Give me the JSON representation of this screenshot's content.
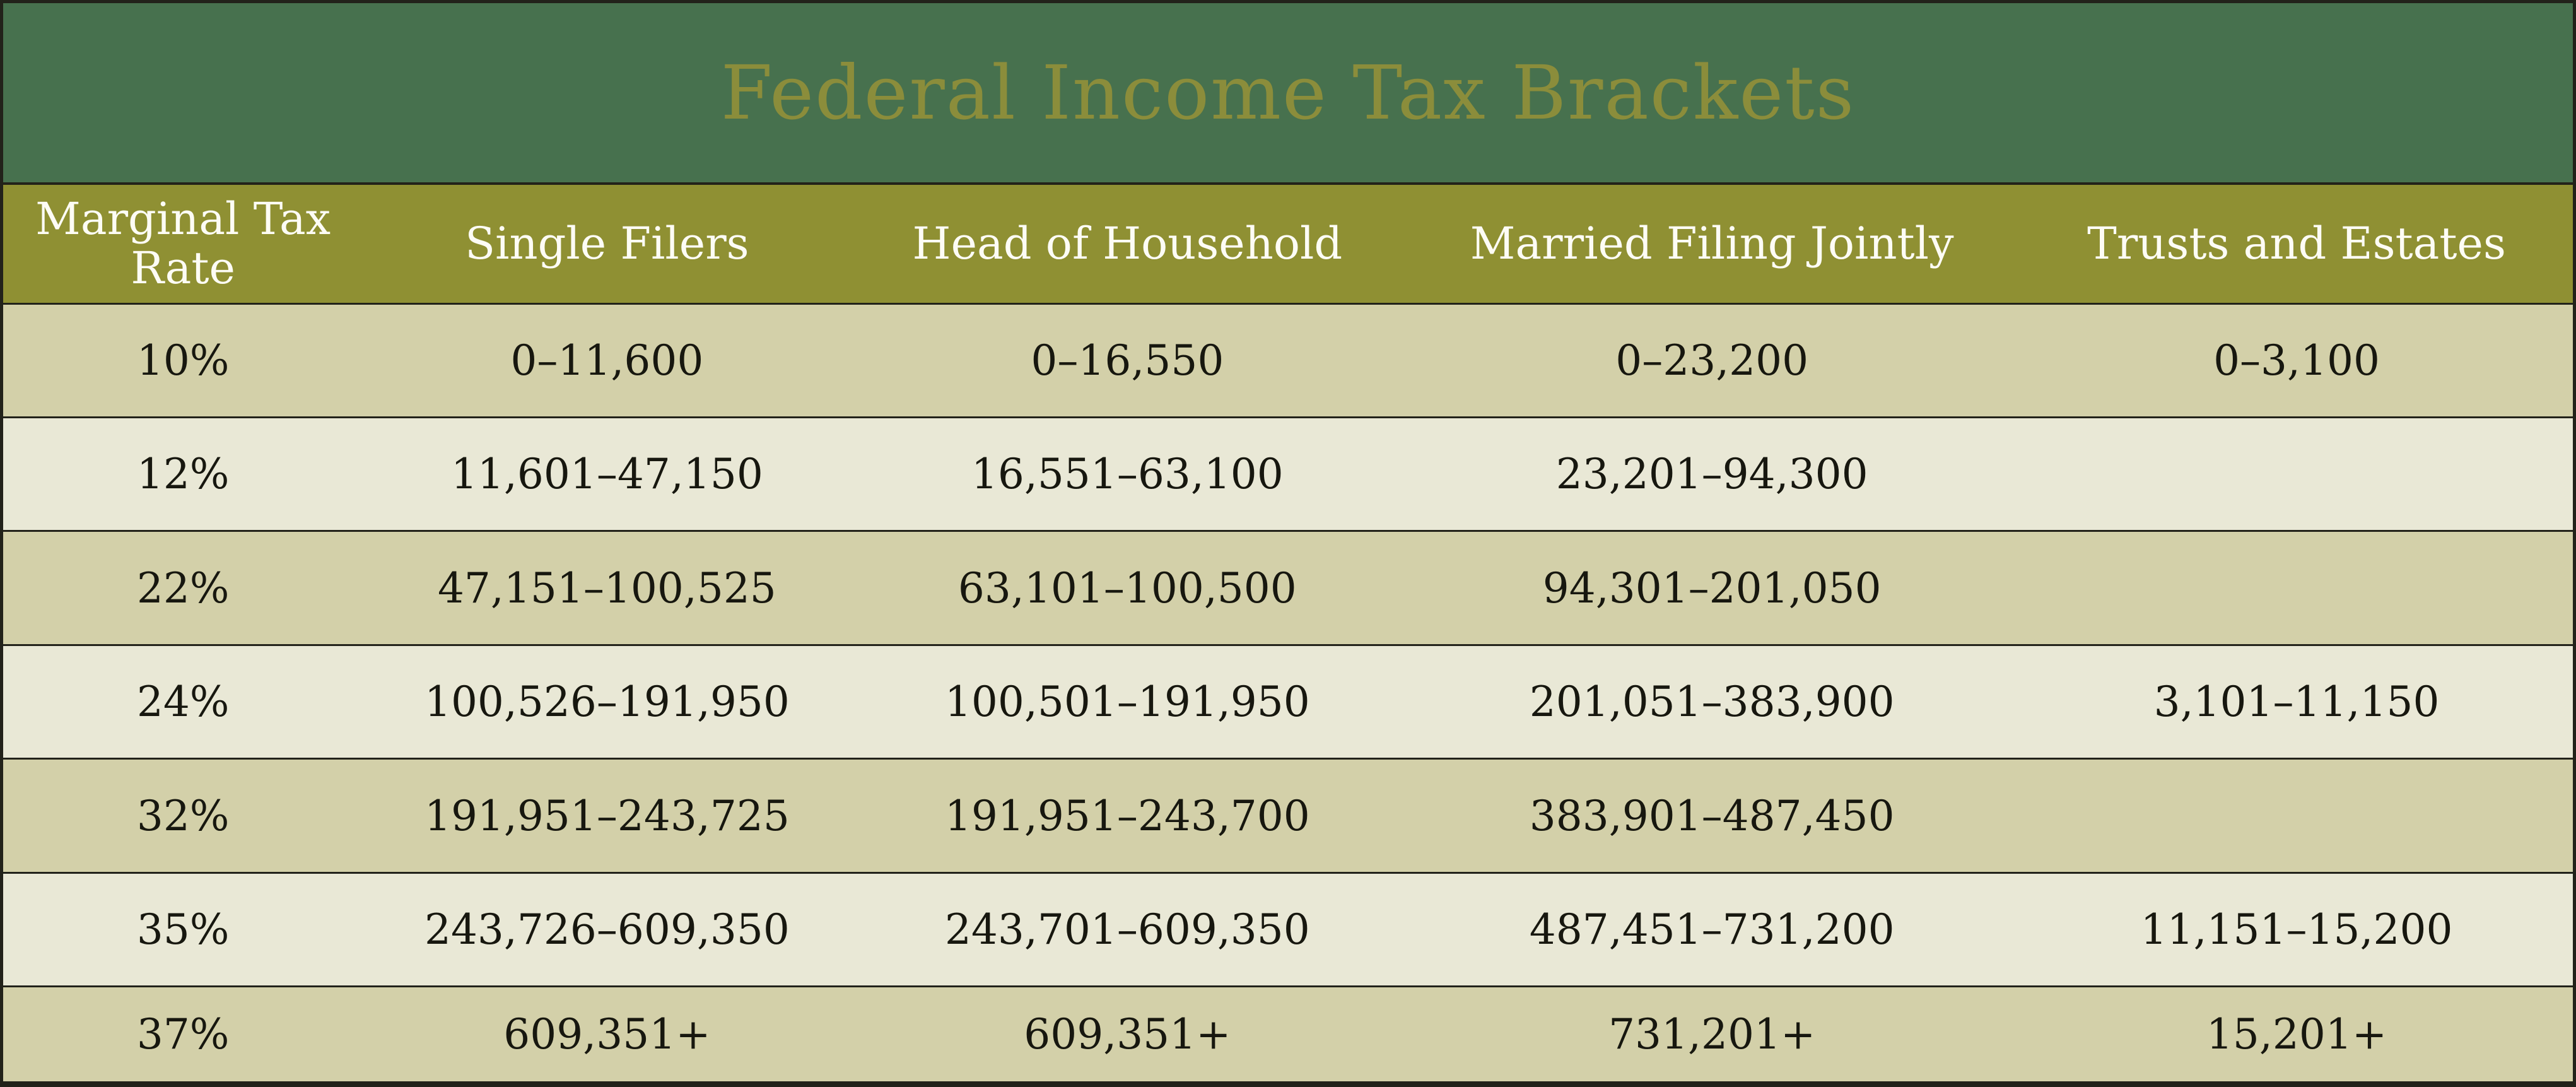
{
  "title": "Federal Income Tax Brackets",
  "chart_data": {
    "type": "table",
    "title": "Federal Income Tax Brackets",
    "columns": [
      "Marginal Tax Rate",
      "Single Filers",
      "Head of Household",
      "Married Filing Jointly",
      "Trusts and Estates"
    ],
    "rows": [
      [
        "10%",
        "0–11,600",
        "0–16,550",
        "0–23,200",
        "0–3,100"
      ],
      [
        "12%",
        "11,601–47,150",
        "16,551–63,100",
        "23,201–94,300",
        ""
      ],
      [
        "22%",
        "47,151–100,525",
        "63,101–100,500",
        "94,301–201,050",
        ""
      ],
      [
        "24%",
        "100,526–191,950",
        "100,501–191,950",
        "201,051–383,900",
        "3,101–11,150"
      ],
      [
        "32%",
        "191,951–243,725",
        "191,951–243,700",
        "383,901–487,450",
        ""
      ],
      [
        "35%",
        "243,726–609,350",
        "243,701–609,350",
        "487,451–731,200",
        ""
      ],
      [
        "37%",
        "609,351+",
        "609,351+",
        "731,201+",
        "15,201+"
      ]
    ],
    "row_35_trusts_note": "11,151–15,200"
  },
  "colors": {
    "title_bg": "#47714e",
    "title_text": "#8b8d3b",
    "header_bg": "#8f9033",
    "header_text": "#fdfcf5",
    "row_odd": "#d3d0a9",
    "row_even": "#e9e8d6",
    "cell_text": "#17170f",
    "border": "#22221a"
  }
}
